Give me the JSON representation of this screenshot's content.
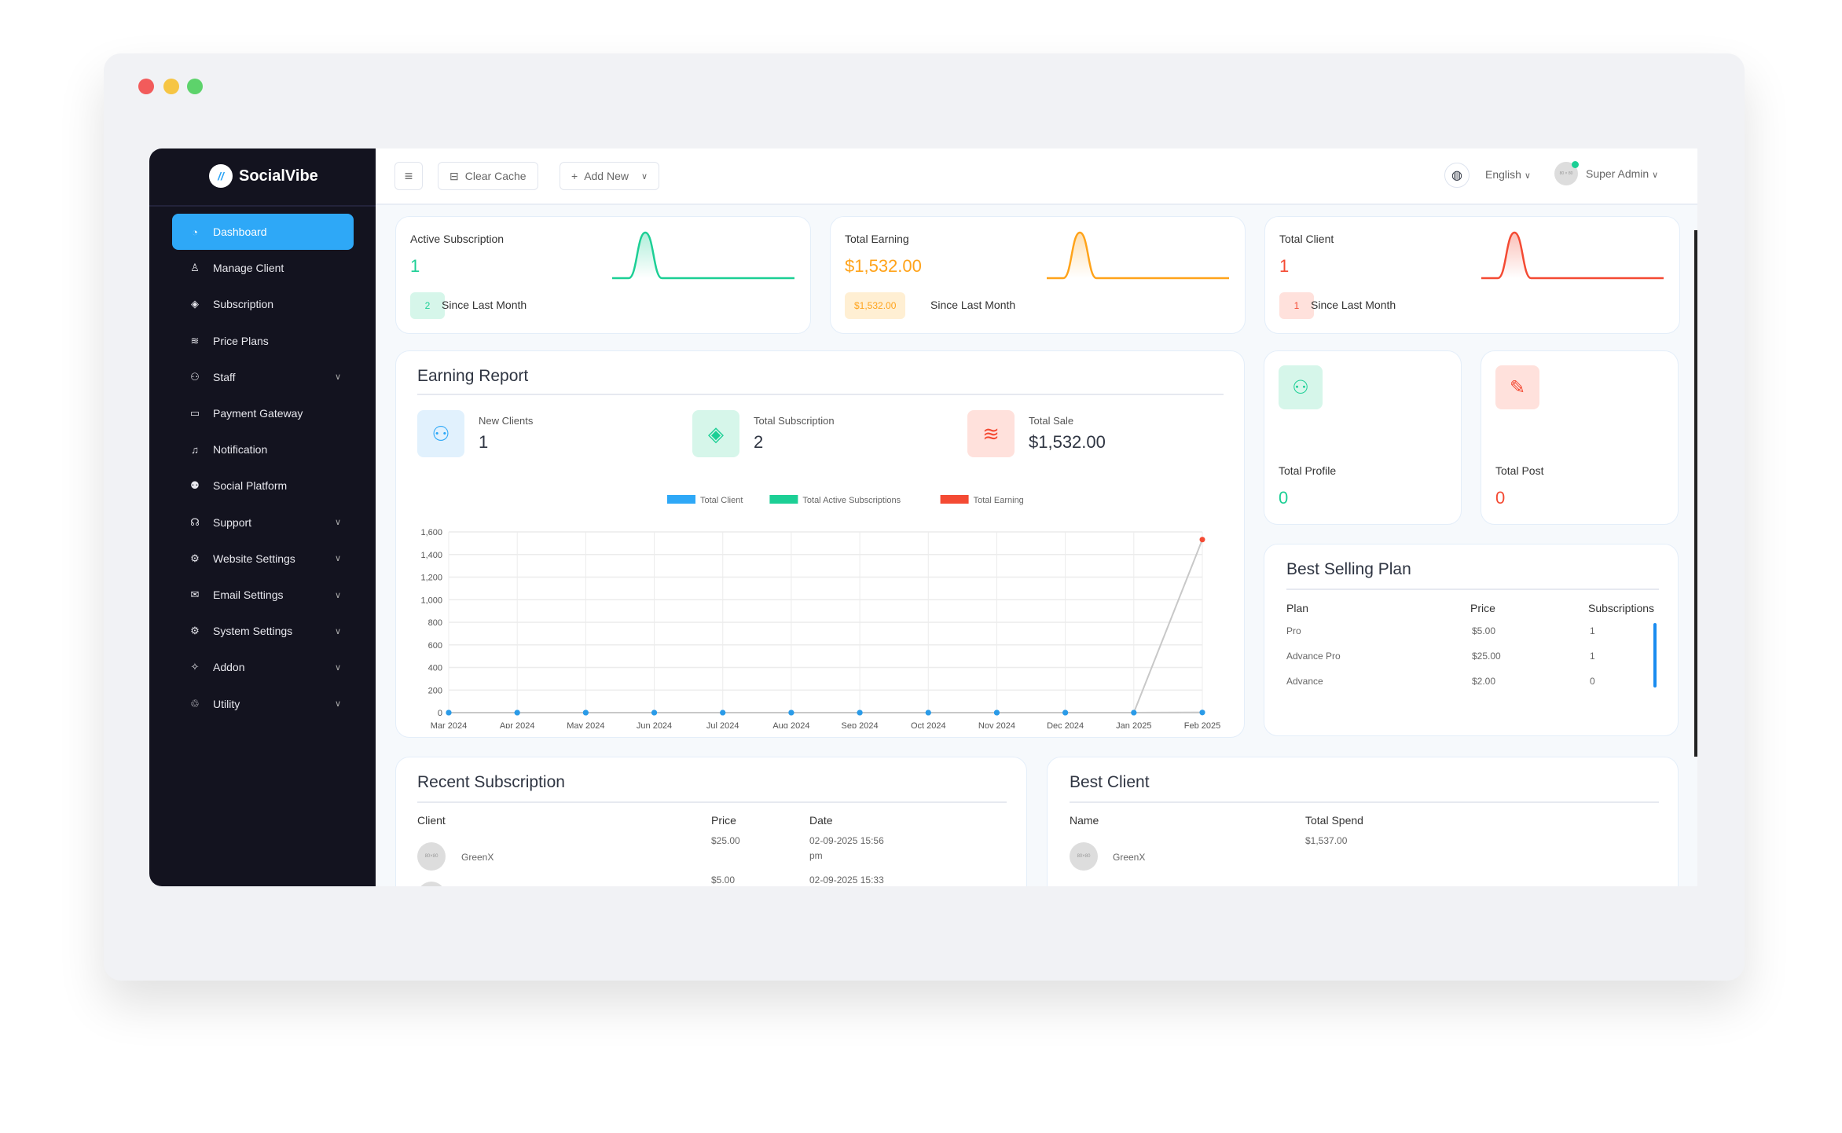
{
  "brand": {
    "name": "SocialVibe",
    "mark": "//"
  },
  "sidebar": {
    "items": [
      {
        "label": "Dashboard",
        "icon": "gauge-icon",
        "glyph": "◔",
        "active": true,
        "chevron": false
      },
      {
        "label": "Manage Client",
        "icon": "user-icon",
        "glyph": "♙",
        "chevron": false
      },
      {
        "label": "Subscription",
        "icon": "tag-icon",
        "glyph": "◈",
        "chevron": false
      },
      {
        "label": "Price Plans",
        "icon": "coins-icon",
        "glyph": "≋",
        "chevron": false
      },
      {
        "label": "Staff",
        "icon": "users-icon",
        "glyph": "⚇",
        "chevron": true
      },
      {
        "label": "Payment Gateway",
        "icon": "card-icon",
        "glyph": "▭",
        "chevron": false
      },
      {
        "label": "Notification",
        "icon": "bell-icon",
        "glyph": "♫",
        "chevron": false
      },
      {
        "label": "Social Platform",
        "icon": "people-icon",
        "glyph": "⚉",
        "chevron": false
      },
      {
        "label": "Support",
        "icon": "headset-icon",
        "glyph": "☊",
        "chevron": true
      },
      {
        "label": "Website Settings",
        "icon": "gear-icon",
        "glyph": "⚙",
        "chevron": true
      },
      {
        "label": "Email Settings",
        "icon": "mail-icon",
        "glyph": "✉",
        "chevron": true
      },
      {
        "label": "System Settings",
        "icon": "gear-icon",
        "glyph": "⚙",
        "chevron": true
      },
      {
        "label": "Addon",
        "icon": "puzzle-icon",
        "glyph": "✧",
        "chevron": true
      },
      {
        "label": "Utility",
        "icon": "tools-icon",
        "glyph": "♲",
        "chevron": true
      }
    ]
  },
  "topbar": {
    "clear_cache": "Clear Cache",
    "add_new": "Add New",
    "language": "English",
    "user": "Super Admin",
    "avatar_text": "80 × 80"
  },
  "summary_cards": [
    {
      "title": "Active Subscription",
      "value": "1",
      "badge": "2",
      "since": "Since Last Month",
      "color": "#1ccf95",
      "badge_bg": "#d6f6ea",
      "spark": [
        0,
        0,
        1,
        0,
        0,
        0,
        0,
        0,
        0,
        0,
        0,
        0
      ]
    },
    {
      "title": "Total Earning",
      "value": "$1,532.00",
      "badge": "$1,532.00",
      "since": "Since Last Month",
      "color": "#ffa31a",
      "badge_bg": "#ffefd3",
      "spark": [
        0,
        0,
        1,
        0,
        0,
        0,
        0,
        0,
        0,
        0,
        0,
        0
      ]
    },
    {
      "title": "Total Client",
      "value": "1",
      "badge": "1",
      "since": "Since Last Month",
      "color": "#f44a33",
      "badge_bg": "#ffe1dc",
      "spark": [
        0,
        0,
        1,
        0,
        0,
        0,
        0,
        0,
        0,
        0,
        0,
        0
      ]
    }
  ],
  "earning_report": {
    "title": "Earning Report",
    "stats": [
      {
        "label": "New Clients",
        "value": "1",
        "icon": "users-icon"
      },
      {
        "label": "Total Subscription",
        "value": "2",
        "icon": "tag-icon"
      },
      {
        "label": "Total Sale",
        "value": "$1,532.00",
        "icon": "coins-icon"
      }
    ]
  },
  "chart_data": {
    "type": "line",
    "categories": [
      "Mar 2024",
      "Apr 2024",
      "May 2024",
      "Jun 2024",
      "Jul 2024",
      "Aug 2024",
      "Sep 2024",
      "Oct 2024",
      "Nov 2024",
      "Dec 2024",
      "Jan 2025",
      "Feb 2025"
    ],
    "series": [
      {
        "name": "Total Client",
        "color": "#2ea8f7",
        "values": [
          0,
          0,
          0,
          0,
          0,
          0,
          0,
          0,
          0,
          0,
          0,
          1
        ]
      },
      {
        "name": "Total Active Subscriptions",
        "color": "#1ccf95",
        "values": [
          0,
          0,
          0,
          0,
          0,
          0,
          0,
          0,
          0,
          0,
          0,
          2
        ]
      },
      {
        "name": "Total Earning",
        "color": "#f44a33",
        "values": [
          0,
          0,
          0,
          0,
          0,
          0,
          0,
          0,
          0,
          0,
          0,
          1532
        ]
      }
    ],
    "ylim": [
      0,
      1600
    ],
    "yticks": [
      "0",
      "200",
      "400",
      "600",
      "800",
      "1,000",
      "1,200",
      "1,400",
      "1,600"
    ],
    "grid": true,
    "legend": "top"
  },
  "profile_cards": [
    {
      "title": "Total Profile",
      "value": "0",
      "color": "#1ccf95",
      "bg": "#d6f6ea"
    },
    {
      "title": "Total Post",
      "value": "0",
      "color": "#f44a33",
      "bg": "#ffe1dc"
    }
  ],
  "best_selling": {
    "title": "Best Selling Plan",
    "headers": [
      "Plan",
      "Price",
      "Subscriptions"
    ],
    "rows": [
      [
        "Pro",
        "$5.00",
        "1"
      ],
      [
        "Advance Pro",
        "$25.00",
        "1"
      ],
      [
        "Advance",
        "$2.00",
        "0"
      ]
    ]
  },
  "recent_subscription": {
    "title": "Recent Subscription",
    "headers": [
      "Client",
      "Price",
      "Date"
    ],
    "rows": [
      {
        "client": "GreenX",
        "price": "$25.00",
        "date": "02-09-2025 15:56",
        "date2": "pm"
      },
      {
        "client": "",
        "price": "$5.00",
        "date": "02-09-2025 15:33",
        "date2": ""
      }
    ]
  },
  "best_client": {
    "title": "Best Client",
    "headers": [
      "Name",
      "Total Spend"
    ],
    "rows": [
      {
        "name": "GreenX",
        "spend": "$1,537.00"
      }
    ]
  }
}
